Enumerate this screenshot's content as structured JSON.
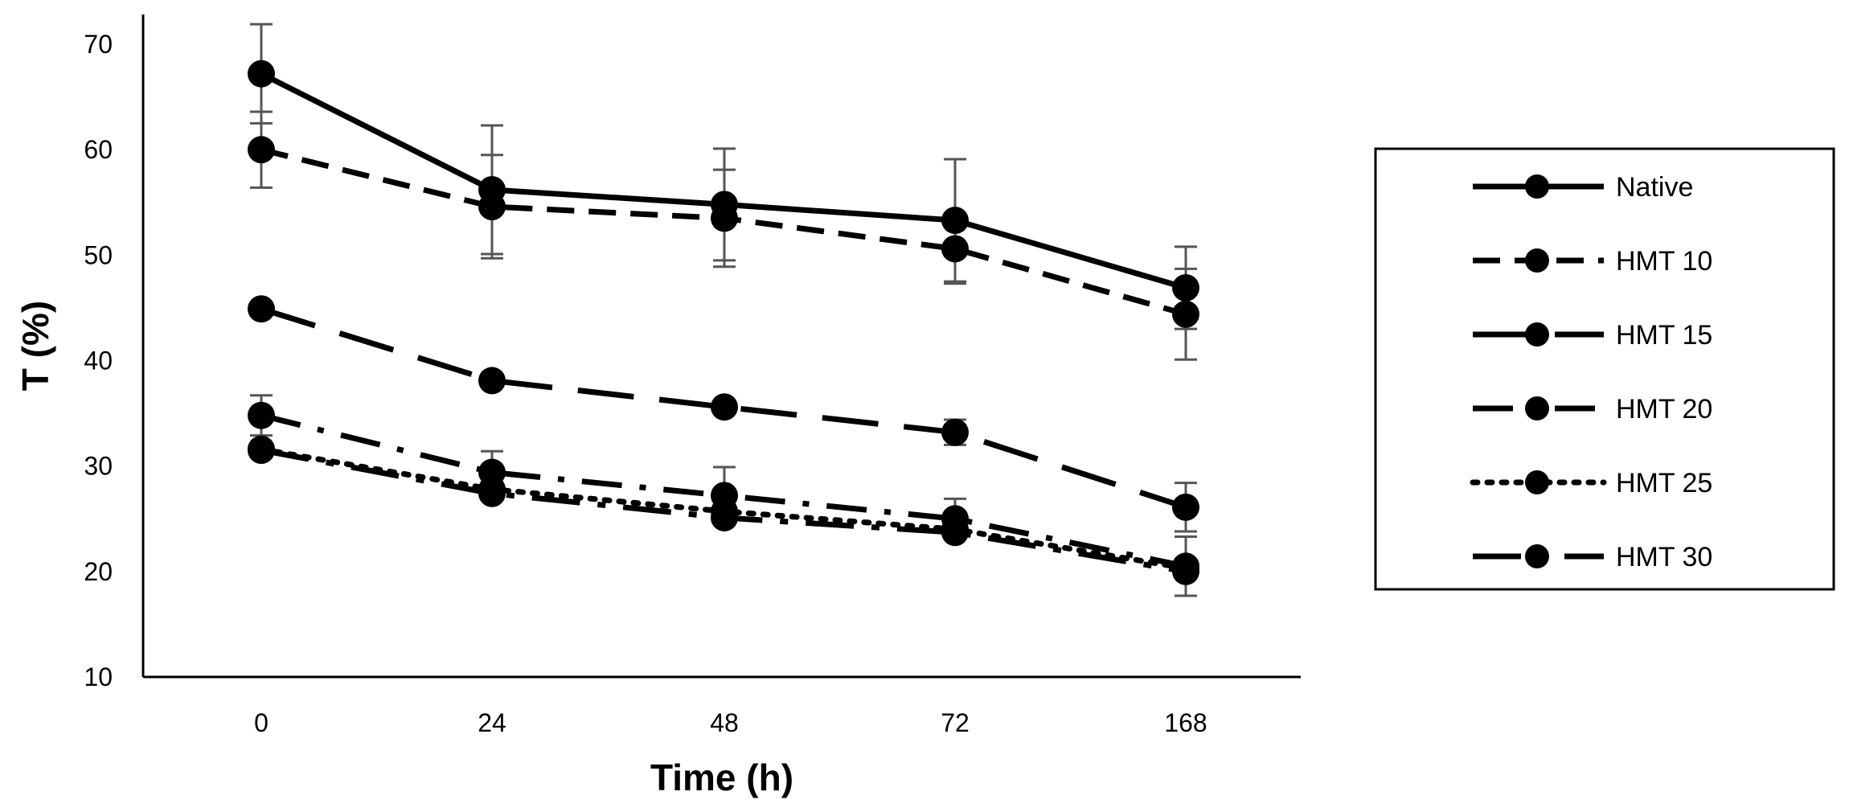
{
  "chart_data": {
    "type": "line",
    "title": "",
    "xlabel": "Time (h)",
    "ylabel": "T (%)",
    "categories": [
      "0",
      "24",
      "48",
      "72",
      "168"
    ],
    "ylim": [
      10,
      70
    ],
    "yticks": [
      10,
      20,
      30,
      40,
      50,
      60,
      70
    ],
    "grid": false,
    "legend_position": "right",
    "series": [
      {
        "name": "Native",
        "values": [
          67.2,
          56.2,
          54.8,
          53.3,
          46.9
        ],
        "errors": [
          4.7,
          6.1,
          5.3,
          5.8,
          3.9
        ],
        "dash": "solid"
      },
      {
        "name": "HMT 10",
        "values": [
          60.0,
          54.6,
          53.5,
          50.6,
          44.4
        ],
        "errors": [
          3.6,
          4.9,
          4.6,
          3.3,
          4.3
        ],
        "dash": "dashed"
      },
      {
        "name": "HMT 15",
        "values": [
          44.9,
          38.1,
          35.6,
          33.2,
          26.1
        ],
        "errors": [
          0,
          0,
          0,
          1.2,
          2.3
        ],
        "dash": "long-dash"
      },
      {
        "name": "HMT 20",
        "values": [
          34.8,
          29.4,
          27.2,
          25.0,
          20.5
        ],
        "errors": [
          1.9,
          2.0,
          2.7,
          1.9,
          2.8
        ],
        "dash": "dash-dot"
      },
      {
        "name": "HMT 25",
        "values": [
          31.6,
          27.8,
          25.7,
          24.0,
          20.3
        ],
        "errors": [
          0,
          0,
          0,
          0,
          0
        ],
        "dash": "dotted"
      },
      {
        "name": "HMT 30",
        "values": [
          31.5,
          27.4,
          25.1,
          23.7,
          20.0
        ],
        "errors": [
          0,
          0,
          0,
          0,
          0
        ],
        "dash": "long-dash-dot"
      }
    ]
  }
}
